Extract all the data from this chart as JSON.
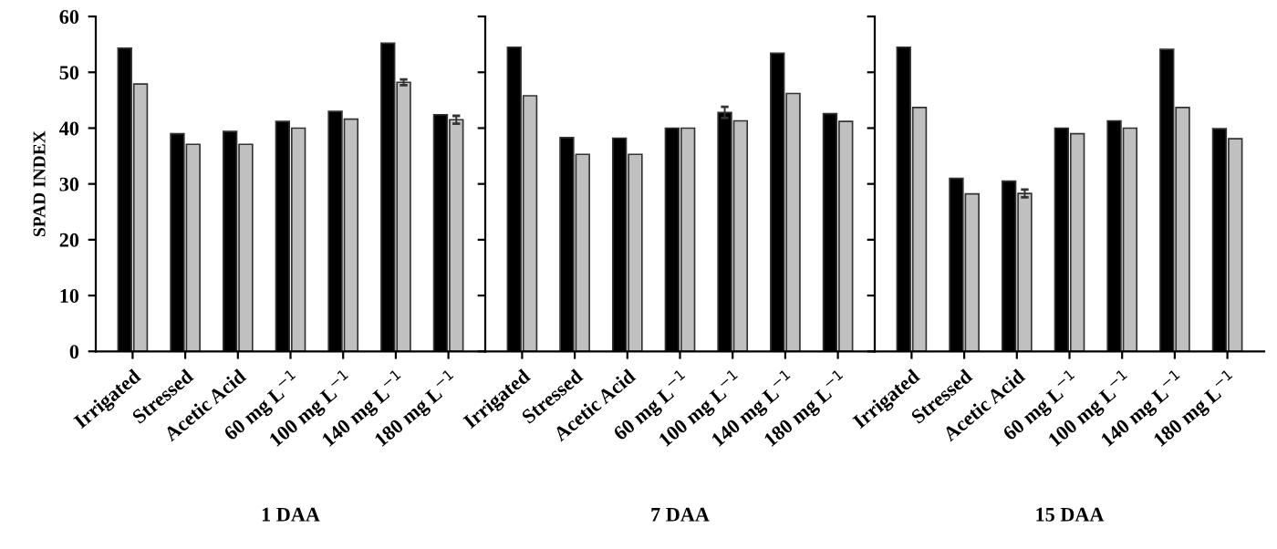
{
  "chart_data": [
    {
      "type": "bar",
      "xlabel": "1 DAA",
      "ylabel": "SPAD INDEX",
      "categories": [
        "Irrigated",
        "Stressed",
        "Acetic Acid",
        "60 mg L$^{−1}$",
        "100 mg L$^{−1}$",
        "140 mg L$^{−1}$",
        "180 mg L$^{−1}$"
      ],
      "ylim": [
        0,
        60
      ],
      "yticks": [
        0,
        10,
        20,
        30,
        40,
        50,
        60
      ],
      "series": [
        {
          "color": "#000000",
          "values": [
            54.3,
            39,
            39.4,
            41.2,
            43,
            55.2,
            42.4
          ]
        },
        {
          "color": "#c0c0c0",
          "values": [
            47.9,
            37.1,
            37.1,
            40,
            41.6,
            48.2,
            41.5
          ],
          "errors": [
            null,
            null,
            null,
            null,
            null,
            0.5,
            0.7
          ]
        }
      ]
    },
    {
      "type": "bar",
      "xlabel": "7 DAA",
      "categories": [
        "Irrigated",
        "Stressed",
        "Acetic Acid",
        "60 mg L$^{−1}$",
        "100 mg L$^{−1}$",
        "140 mg L$^{−1}$",
        "180 mg L$^{−1}$"
      ],
      "ylim": [
        0,
        60
      ],
      "yticks": [
        0,
        10,
        20,
        30,
        40,
        50,
        60
      ],
      "tick_labels": "x",
      "series": [
        {
          "color": "#000000",
          "values": [
            54.5,
            38.3,
            38.2,
            40,
            42.8,
            53.4,
            42.6
          ],
          "errors": [
            null,
            null,
            null,
            null,
            1,
            null,
            null
          ]
        },
        {
          "color": "#c0c0c0",
          "values": [
            45.8,
            35.3,
            35.3,
            40,
            41.3,
            46.2,
            41.2
          ]
        }
      ]
    },
    {
      "type": "bar",
      "xlabel": "15 DAA",
      "categories": [
        "Irrigated",
        "Stressed",
        "Acetic Acid",
        "60 mg L$^{−1}$",
        "100 mg L$^{−1}$",
        "140 mg L$^{−1}$",
        "180 mg L$^{−1}$"
      ],
      "ylim": [
        0,
        60
      ],
      "yticks": [
        0,
        10,
        20,
        30,
        40,
        50,
        60
      ],
      "tick_labels": "x",
      "series": [
        {
          "color": "#000000",
          "values": [
            54.5,
            31,
            30.5,
            40,
            41.3,
            54.1,
            39.9
          ]
        },
        {
          "color": "#c0c0c0",
          "values": [
            43.7,
            28.2,
            28.3,
            39,
            40,
            43.7,
            38.1
          ],
          "errors": [
            null,
            null,
            0.7,
            null,
            null,
            null,
            null
          ]
        }
      ]
    }
  ]
}
